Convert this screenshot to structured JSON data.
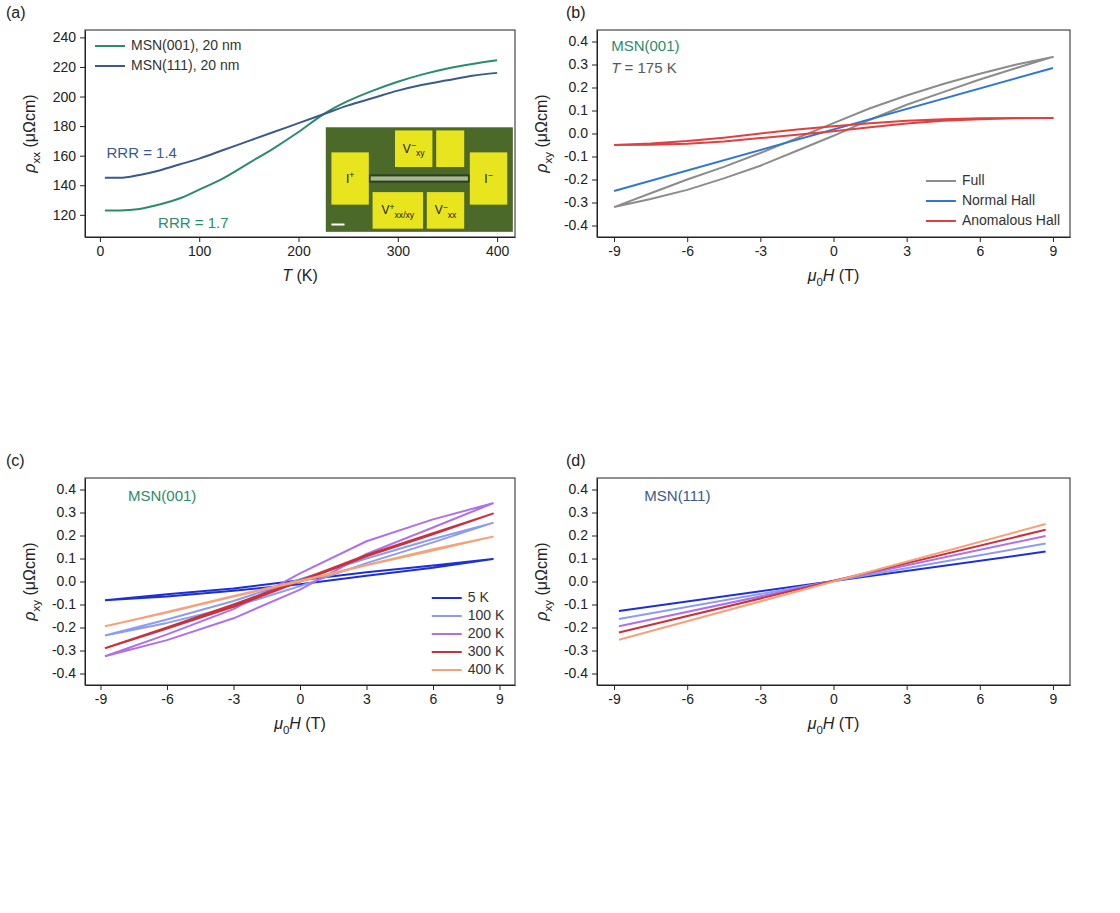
{
  "chart_data": [
    {
      "type": "line",
      "panel_label": "(a)",
      "x_label": [
        {
          "text": "T",
          "style": "italic"
        },
        {
          "text": " (K)"
        }
      ],
      "y_label": [
        {
          "text": "ρ",
          "style": "italic"
        },
        {
          "text": "xx",
          "style": "sub"
        },
        {
          "text": " (μΩcm)"
        }
      ],
      "x": [
        5,
        20,
        40,
        60,
        80,
        100,
        125,
        150,
        175,
        200,
        225,
        250,
        275,
        300,
        325,
        350,
        375,
        400
      ],
      "xlim": [
        -15,
        418
      ],
      "xticks": [
        0,
        100,
        200,
        300,
        400
      ],
      "ylim": [
        105,
        245
      ],
      "yticks": [
        120,
        140,
        160,
        180,
        200,
        220,
        240
      ],
      "legend": "upper left",
      "series": [
        {
          "name": "MSN(001), 20 nm",
          "color": "#2a8c6c",
          "values": [
            123,
            123,
            124,
            127,
            131,
            137,
            145,
            155,
            165,
            176,
            188,
            197,
            204,
            210,
            215,
            219,
            222,
            224.5
          ]
        },
        {
          "name": "MSN(111), 20 nm",
          "color": "#3a5a8c",
          "values": [
            145,
            145,
            147,
            150,
            154,
            158,
            164,
            170,
            176,
            182,
            188,
            194,
            199,
            204,
            208,
            211,
            214,
            216
          ]
        }
      ],
      "annotations": [
        {
          "text": "RRR = 1.4",
          "color": "#3a5a8c"
        },
        {
          "text": "RRR = 1.7",
          "color": "#2a8c6c"
        }
      ],
      "inset_labels": [
        [
          {
            "text": "V"
          },
          {
            "text": "−",
            "style": "sup"
          },
          {
            "text": "xy",
            "style": "sub"
          }
        ],
        [
          {
            "text": "I"
          },
          {
            "text": "+",
            "style": "sup"
          }
        ],
        [
          {
            "text": "I"
          },
          {
            "text": "−",
            "style": "sup"
          }
        ],
        [
          {
            "text": "V"
          },
          {
            "text": "+",
            "style": "sup"
          },
          {
            "text": "xx/xy",
            "style": "sub"
          }
        ],
        [
          {
            "text": "V"
          },
          {
            "text": "−",
            "style": "sup"
          },
          {
            "text": "xx",
            "style": "sub"
          }
        ]
      ]
    },
    {
      "type": "line",
      "panel_label": "(b)",
      "x_label": [
        {
          "text": "μ",
          "style": "italic"
        },
        {
          "text": "0",
          "style": "sub"
        },
        {
          "text": "H",
          "style": "italic"
        },
        {
          "text": " (T)"
        }
      ],
      "y_label": [
        {
          "text": "ρ",
          "style": "italic"
        },
        {
          "text": "xy",
          "style": "sub"
        },
        {
          "text": " (μΩcm)"
        }
      ],
      "xlim": [
        -9.7,
        9.7
      ],
      "xticks": [
        -9,
        -6,
        -3,
        0,
        3,
        6,
        9
      ],
      "ylim": [
        -0.45,
        0.45
      ],
      "yticks": [
        -0.4,
        -0.3,
        -0.2,
        -0.1,
        {
          "value": 0,
          "label": "0.0"
        },
        0.1,
        0.2,
        0.3,
        0.4
      ],
      "legend": "lower right",
      "series": [
        {
          "name": "Full",
          "color": "#8c8c8c",
          "x": [
            -9,
            -7.5,
            -6,
            -4.5,
            -3,
            -1.5,
            0,
            1.5,
            3,
            4.5,
            6,
            7.5,
            9,
            7.5,
            6,
            4.5,
            3,
            1.5,
            0,
            -1.5,
            -3,
            -4.5,
            -6,
            -7.5,
            -9
          ],
          "values": [
            -0.32,
            -0.285,
            -0.245,
            -0.195,
            -0.14,
            -0.075,
            -0.01,
            0.06,
            0.125,
            0.18,
            0.235,
            0.285,
            0.333,
            0.3,
            0.26,
            0.215,
            0.165,
            0.11,
            0.045,
            -0.02,
            -0.085,
            -0.145,
            -0.2,
            -0.26,
            -0.32
          ]
        },
        {
          "name": "Normal Hall",
          "color": "#2f78d0",
          "x": [
            -9,
            9
          ],
          "values": [
            -0.25,
            0.285
          ]
        },
        {
          "name": "Anomalous Hall",
          "color": "#e0403f",
          "x": [
            -9,
            -7.5,
            -6,
            -4.5,
            -3,
            -1.5,
            0,
            1.5,
            3,
            4.5,
            6,
            7.5,
            9,
            7.5,
            6,
            4.5,
            3,
            1.5,
            0,
            -1.5,
            -3,
            -4.5,
            -6,
            -7.5,
            -9
          ],
          "values": [
            -0.05,
            -0.049,
            -0.045,
            -0.035,
            -0.02,
            -0.005,
            0.01,
            0.027,
            0.043,
            0.055,
            0.062,
            0.066,
            0.067,
            0.067,
            0.066,
            0.062,
            0.055,
            0.045,
            0.032,
            0.017,
            0,
            -0.018,
            -0.033,
            -0.044,
            -0.05
          ]
        }
      ],
      "annotations": [
        {
          "text": "MSN(001)",
          "color": "#2a8c6c"
        },
        {
          "text": [
            {
              "text": "T",
              "style": "italic"
            },
            {
              "text": " = 175 K"
            }
          ],
          "color": "#5a5a5a"
        }
      ]
    },
    {
      "type": "line",
      "panel_label": "(c)",
      "x_label": [
        {
          "text": "μ",
          "style": "italic"
        },
        {
          "text": "0",
          "style": "sub"
        },
        {
          "text": "H",
          "style": "italic"
        },
        {
          "text": " (T)"
        }
      ],
      "y_label": [
        {
          "text": "ρ",
          "style": "italic"
        },
        {
          "text": "xy",
          "style": "sub"
        },
        {
          "text": " (μΩcm)"
        }
      ],
      "x": [
        -8.8,
        -6,
        -3,
        0,
        3,
        6,
        8.7,
        6,
        3,
        0,
        -3,
        -6,
        -8.8
      ],
      "xlim": [
        -9.7,
        9.7
      ],
      "xticks": [
        -9,
        -6,
        -3,
        0,
        3,
        6,
        9
      ],
      "ylim": [
        -0.45,
        0.45
      ],
      "yticks": [
        -0.4,
        -0.3,
        -0.2,
        -0.1,
        {
          "value": 0,
          "label": "0.0"
        },
        0.1,
        0.2,
        0.3,
        0.4
      ],
      "legend": "lower right",
      "series": [
        {
          "name": "5 K",
          "color": "#1f2fd6",
          "values": [
            -0.082,
            -0.065,
            -0.04,
            -0.012,
            0.025,
            0.06,
            0.098,
            0.07,
            0.04,
            0.005,
            -0.03,
            -0.055,
            -0.082
          ]
        },
        {
          "name": "100 K",
          "color": "#8c9cf0",
          "values": [
            -0.235,
            -0.18,
            -0.11,
            -0.02,
            0.08,
            0.17,
            0.255,
            0.185,
            0.1,
            0.01,
            -0.085,
            -0.165,
            -0.235
          ]
        },
        {
          "name": "200 K",
          "color": "#b070e8",
          "values": [
            -0.325,
            -0.255,
            -0.16,
            -0.035,
            0.12,
            0.235,
            0.34,
            0.27,
            0.175,
            0.035,
            -0.12,
            -0.23,
            -0.325
          ]
        },
        {
          "name": "300 K",
          "color": "#c8323c",
          "values": [
            -0.29,
            -0.205,
            -0.11,
            0,
            0.11,
            0.205,
            0.295,
            0.21,
            0.115,
            0.005,
            -0.1,
            -0.2,
            -0.29
          ]
        },
        {
          "name": "400 K",
          "color": "#f4a27a",
          "values": [
            -0.195,
            -0.135,
            -0.065,
            0,
            0.07,
            0.135,
            0.195,
            0.14,
            0.072,
            0.003,
            -0.063,
            -0.133,
            -0.195
          ]
        }
      ],
      "annotations": [
        {
          "text": "MSN(001)",
          "color": "#2a8c6c"
        }
      ]
    },
    {
      "type": "line",
      "panel_label": "(d)",
      "x_label": [
        {
          "text": "μ",
          "style": "italic"
        },
        {
          "text": "0",
          "style": "sub"
        },
        {
          "text": "H",
          "style": "italic"
        },
        {
          "text": " (T)"
        }
      ],
      "y_label": [
        {
          "text": "ρ",
          "style": "italic"
        },
        {
          "text": "xy",
          "style": "sub"
        },
        {
          "text": " (μΩcm)"
        }
      ],
      "x": [
        -8.8,
        8.7
      ],
      "xlim": [
        -9.7,
        9.7
      ],
      "xticks": [
        -9,
        -6,
        -3,
        0,
        3,
        6,
        9
      ],
      "ylim": [
        -0.45,
        0.45
      ],
      "yticks": [
        -0.4,
        -0.3,
        -0.2,
        -0.1,
        {
          "value": 0,
          "label": "0.0"
        },
        0.1,
        0.2,
        0.3,
        0.4
      ],
      "series": [
        {
          "color": "#1f2fd6",
          "values": [
            -0.128,
            0.13
          ]
        },
        {
          "color": "#8c9cf0",
          "values": [
            -0.163,
            0.165
          ]
        },
        {
          "color": "#b070e8",
          "values": [
            -0.195,
            0.198
          ]
        },
        {
          "color": "#c8323c",
          "values": [
            -0.222,
            0.225
          ]
        },
        {
          "color": "#f4a27a",
          "values": [
            -0.253,
            0.25
          ]
        }
      ],
      "annotations": [
        {
          "text": "MSN(111)",
          "color": "#3a5a8c"
        }
      ]
    }
  ]
}
